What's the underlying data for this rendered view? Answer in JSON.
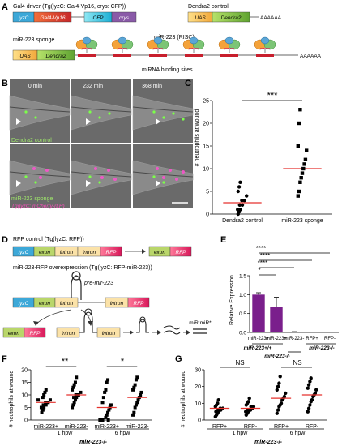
{
  "panelA": {
    "letter": "A",
    "gal4_title": "Gal4 driver (Tg(lyzC: Gal4-Vp16, crys: CFP))",
    "dendra_title": "Dendra2 control",
    "sponge_title": "miR-223 sponge",
    "risc_label": "miR-223 (RISC)",
    "binding_label": "miRNA binding sites",
    "boxes": {
      "lyzC": "lyzC",
      "gal4": "Gal4-Vp16",
      "cfp": "CFP",
      "crys": "crys",
      "uas": "UAS",
      "dendra2": "Dendra2",
      "polyA": "AAAAAA"
    }
  },
  "panelB": {
    "letter": "B",
    "times": [
      "0 min",
      "232 min",
      "368 min"
    ],
    "label_top": "Dendra2 control",
    "label_bottom1": "miR-223 sponge",
    "label_bottom2": "Tg(lyzC: mCherry-rLH)"
  },
  "panelC": {
    "letter": "C",
    "ylabel": "# neutrophils at wound",
    "sig": "***"
  },
  "panelD": {
    "letter": "D",
    "rfp_title": "RFP control (Tg(lyzC: RFP))",
    "over_title": "miR-223-RFP overexpression (Tg(lyzC: RFP-miR-223))",
    "pre_mir": "pre-mir-223",
    "duplex": "miR:miR*",
    "boxes": {
      "lyzC": "lyzC",
      "exon": "exon",
      "intron": "intron",
      "RFP": "RFP"
    }
  },
  "panelE": {
    "letter": "E",
    "ylabel": "Relative Expression",
    "sigs": [
      "****",
      "****",
      "****",
      "*"
    ],
    "group_a": "miR-223+/+",
    "group_b": "miR-223-/-",
    "group_c": "miR-223-/-"
  },
  "panelF": {
    "letter": "F",
    "ylabel": "# neutrophils at wound",
    "sigs": [
      "**",
      "*"
    ],
    "time1": "1 hpw",
    "time2": "6 hpw",
    "genotype": "miR-223-/-"
  },
  "panelG": {
    "letter": "G",
    "ylabel": "# neutrophils at wound",
    "sigs": [
      "NS",
      "NS"
    ],
    "time1": "1 hpw",
    "time2": "6 hpw",
    "genotype": "miR-223-/-"
  },
  "chart_data": [
    {
      "panel": "C",
      "type": "scatter",
      "categories": [
        "Dendra2 control",
        "miR-223 sponge"
      ],
      "ylabel": "# neutrophils at wound",
      "ylim": [
        0,
        25
      ],
      "yticks": [
        0,
        5,
        10,
        15,
        20,
        25
      ],
      "means": [
        2.5,
        10
      ],
      "series": [
        {
          "values": [
            0,
            0.5,
            1,
            1,
            2,
            2,
            3,
            3,
            4,
            5,
            6,
            7
          ]
        },
        {
          "values": [
            4,
            5,
            7,
            8,
            9,
            10,
            11,
            12,
            14,
            15,
            20,
            23
          ]
        }
      ]
    },
    {
      "panel": "E",
      "type": "bar",
      "categories": [
        "miR-223+",
        "miR-223+",
        "miR-223-",
        "RFP+",
        "RFP-"
      ],
      "ylabel": "Relative Expression",
      "ylim": [
        0,
        1.5
      ],
      "yticks": [
        0.0,
        0.5,
        1.0,
        1.5
      ],
      "values": [
        1.0,
        0.67,
        0.01,
        0.0,
        0.0
      ],
      "errors": [
        0.05,
        0.26,
        0.01,
        0,
        0
      ]
    },
    {
      "panel": "F",
      "type": "scatter",
      "categories": [
        "miR-223+",
        "miR-223-",
        "miR-223+",
        "miR-223-"
      ],
      "ylabel": "# neutrophils at wound",
      "ylim": [
        0,
        20
      ],
      "yticks": [
        0,
        5,
        10,
        15,
        20
      ],
      "means": [
        7,
        10,
        5,
        9
      ],
      "series": [
        {
          "values": [
            3,
            4,
            5,
            5,
            6,
            6,
            7,
            7,
            8,
            8,
            9,
            10,
            11,
            12
          ]
        },
        {
          "values": [
            5,
            6,
            7,
            8,
            9,
            9,
            10,
            10,
            11,
            12,
            13,
            14,
            15,
            17
          ]
        },
        {
          "values": [
            0,
            0,
            0,
            1,
            2,
            3,
            4,
            5,
            6,
            7,
            9,
            11,
            12,
            15,
            16
          ]
        },
        {
          "values": [
            2,
            3,
            5,
            6,
            7,
            8,
            9,
            10,
            11,
            12,
            13,
            14,
            16,
            17
          ]
        }
      ]
    },
    {
      "panel": "G",
      "type": "scatter",
      "categories": [
        "RFP+",
        "RFP-",
        "RFP+",
        "RFP-"
      ],
      "ylabel": "# neutrophils at wound",
      "ylim": [
        0,
        30
      ],
      "yticks": [
        0,
        10,
        20,
        30
      ],
      "means": [
        7,
        7,
        13,
        15
      ],
      "series": [
        {
          "values": [
            2,
            3,
            4,
            5,
            5,
            6,
            6,
            7,
            7,
            8,
            9,
            10,
            12
          ]
        },
        {
          "values": [
            3,
            4,
            5,
            5,
            6,
            6,
            7,
            8,
            8,
            9,
            10,
            11,
            13
          ]
        },
        {
          "values": [
            4,
            6,
            8,
            9,
            10,
            12,
            13,
            14,
            16,
            18,
            20,
            22,
            26
          ]
        },
        {
          "values": [
            5,
            7,
            9,
            11,
            12,
            14,
            15,
            16,
            18,
            19,
            21,
            23,
            25
          ]
        }
      ]
    }
  ],
  "colors": {
    "lyzC": "#3da8d8",
    "gal4": "#d63a2a",
    "cfp": "#27c3e6",
    "crys": "#8a5aa8",
    "uas": "#f4c04a",
    "dendra": "#8cc63f",
    "exon": "#b9d66a",
    "intron": "#fbe2a8",
    "rfp": "#d8175a",
    "purple": "#7a1f8c",
    "mean": "#e5322d",
    "micro_bg": "#6c6c6c"
  }
}
